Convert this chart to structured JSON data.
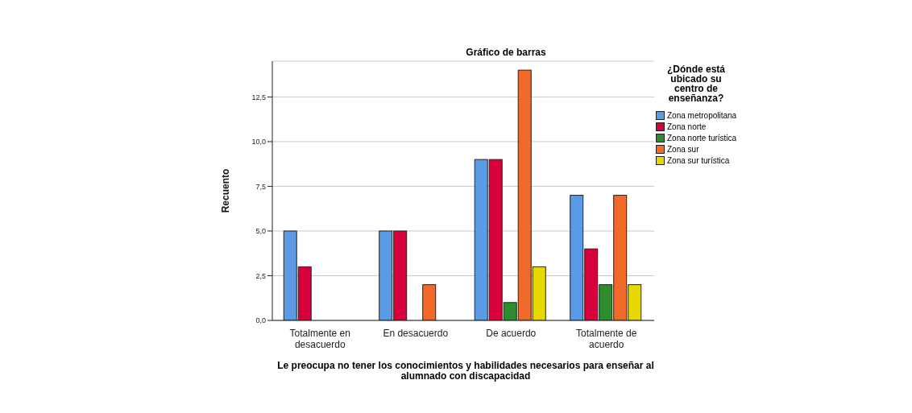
{
  "chart_data": {
    "type": "bar",
    "title": "Gráfico de barras",
    "xlabel": "Le preocupa no tener los conocimientos y habilidades necesarios para enseñar al alumnado con discapacidad",
    "ylabel": "Recuento",
    "legend_title": "¿Dónde está ubicado su centro de enseñanza?",
    "categories": [
      "Totalmente en desacuerdo",
      "En desacuerdo",
      "De acuerdo",
      "Totalmente de acuerdo"
    ],
    "series": [
      {
        "name": "Zona metropolitana",
        "color": "#5b9be6",
        "values": [
          5,
          5,
          9,
          7
        ]
      },
      {
        "name": "Zona norte",
        "color": "#d8003a",
        "values": [
          3,
          5,
          9,
          4
        ]
      },
      {
        "name": "Zona norte turística",
        "color": "#2e8b2e",
        "values": [
          0,
          0,
          1,
          2
        ]
      },
      {
        "name": "Zona sur",
        "color": "#f26a2a",
        "values": [
          0,
          2,
          14,
          7
        ]
      },
      {
        "name": "Zona sur turística",
        "color": "#e6d800",
        "values": [
          0,
          0,
          3,
          2
        ]
      }
    ],
    "ylim": [
      0,
      14.5
    ],
    "yticks": [
      {
        "value": 0,
        "label": "0,0"
      },
      {
        "value": 2.5,
        "label": "2,5"
      },
      {
        "value": 5,
        "label": "5,0"
      },
      {
        "value": 7.5,
        "label": "7,5"
      },
      {
        "value": 10,
        "label": "10,0"
      },
      {
        "value": 12.5,
        "label": "12,5"
      }
    ],
    "grid": "y",
    "legend": "top right"
  }
}
